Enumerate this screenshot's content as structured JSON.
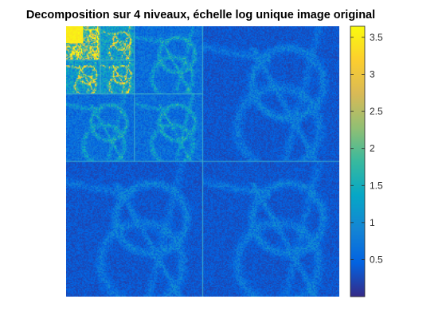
{
  "chart_data": {
    "type": "heatmap",
    "title": "Decomposition sur 4 niveaux, échelle log unique image original",
    "xlabel": "",
    "ylabel": "",
    "colormap": "parula",
    "colormap_stops": [
      "#352a87",
      "#0363e1",
      "#1485d4",
      "#06a7c6",
      "#38b99e",
      "#92bf73",
      "#d9ba56",
      "#fcce2e",
      "#f9fb0e"
    ],
    "clim": [
      0,
      3.65
    ],
    "colorbar": {
      "position": "right",
      "ticks": [
        0.5,
        1,
        1.5,
        2,
        2.5,
        3,
        3.5
      ],
      "tick_labels": [
        "0.5",
        "1",
        "1.5",
        "2",
        "2.5",
        "3",
        "3.5"
      ]
    },
    "grid": false,
    "decomposition_levels": 4,
    "subband_layout": [
      {
        "level": 1,
        "bands": [
          "H",
          "V",
          "D"
        ],
        "typical_value": 0.35
      },
      {
        "level": 2,
        "bands": [
          "H",
          "V",
          "D"
        ],
        "typical_value": 0.6
      },
      {
        "level": 3,
        "bands": [
          "H",
          "V",
          "D"
        ],
        "typical_value": 1.2
      },
      {
        "level": 4,
        "bands": [
          "H",
          "V",
          "D"
        ],
        "typical_value": 1.9
      },
      {
        "level": 4,
        "bands": [
          "A"
        ],
        "typical_value": 3.5
      }
    ]
  }
}
